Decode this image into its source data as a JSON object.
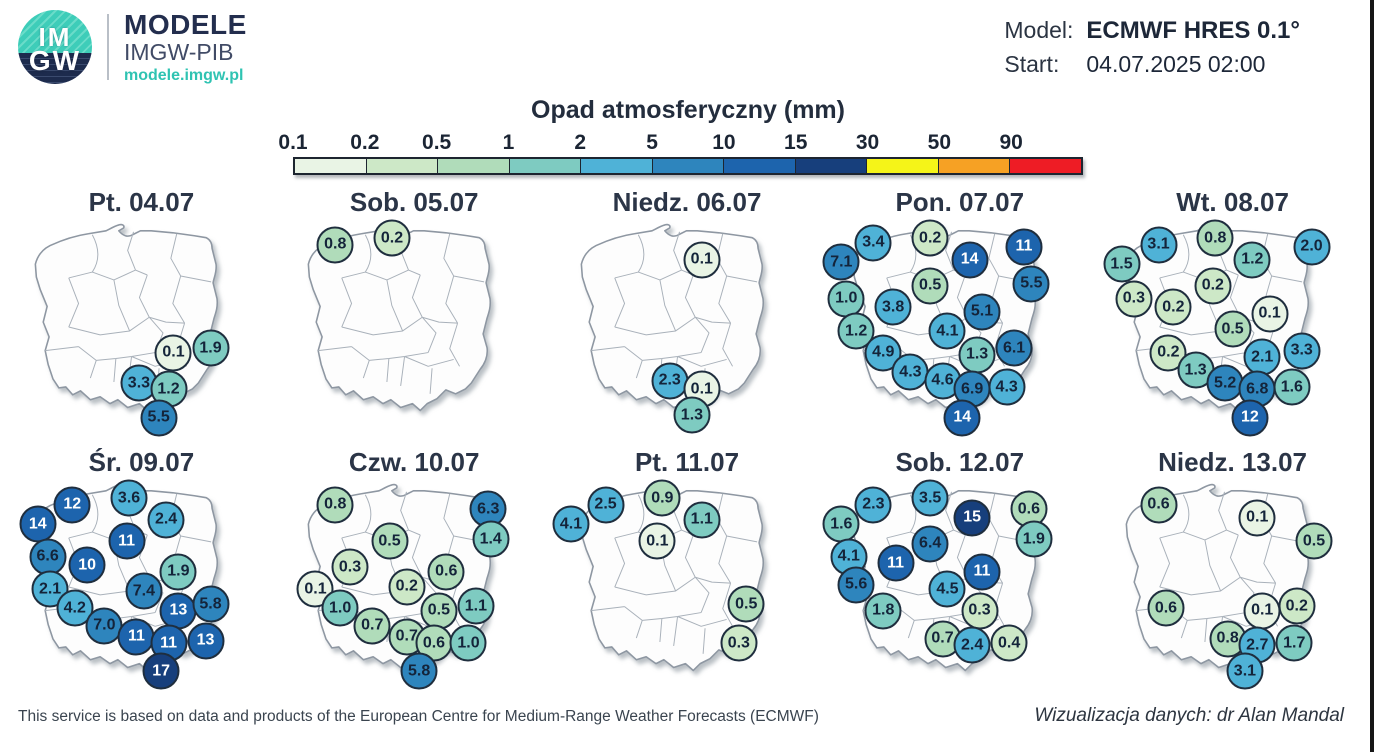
{
  "header": {
    "logo_im": "IM",
    "logo_gw": "GW",
    "brand_title": "MODELE",
    "brand_subtitle": "IMGW-PIB",
    "brand_url": "modele.imgw.pl",
    "model_label": "Model:",
    "model_value": "ECMWF HRES 0.1°",
    "start_label": "Start:",
    "start_value": "04.07.2025 02:00"
  },
  "legend": {
    "title": "Opad atmosferyczny (mm)",
    "ticks": [
      "0.1",
      "0.2",
      "0.5",
      "1",
      "2",
      "5",
      "10",
      "15",
      "30",
      "50",
      "90"
    ],
    "thresholds": [
      0.1,
      0.2,
      0.5,
      1,
      2,
      5,
      10,
      15,
      30,
      50,
      90
    ],
    "colors": [
      "#e9f4e5",
      "#cde8c7",
      "#b0dcba",
      "#7ecbc1",
      "#4fb2d7",
      "#2e85bd",
      "#1d64ad",
      "#173f7c",
      "#f5f418",
      "#f6a124",
      "#ee1c25"
    ],
    "white_text_from": 10
  },
  "maps": [
    {
      "title": "Pt. 04.07",
      "points": [
        {
          "v": "0.1",
          "x": 63,
          "y": 61
        },
        {
          "v": "1.9",
          "x": 78,
          "y": 59
        },
        {
          "v": "3.3",
          "x": 49,
          "y": 75
        },
        {
          "v": "1.2",
          "x": 61,
          "y": 78
        },
        {
          "v": "5.5",
          "x": 57,
          "y": 91
        }
      ]
    },
    {
      "title": "Sob. 05.07",
      "points": [
        {
          "v": "0.8",
          "x": 18,
          "y": 11
        },
        {
          "v": "0.2",
          "x": 41,
          "y": 8
        }
      ]
    },
    {
      "title": "Niedz. 06.07",
      "points": [
        {
          "v": "0.1",
          "x": 56,
          "y": 18
        },
        {
          "v": "2.3",
          "x": 43,
          "y": 74
        },
        {
          "v": "0.1",
          "x": 56,
          "y": 78
        },
        {
          "v": "1.3",
          "x": 52,
          "y": 90
        }
      ]
    },
    {
      "title": "Pon. 07.07",
      "points": [
        {
          "v": "3.4",
          "x": 15,
          "y": 10
        },
        {
          "v": "0.2",
          "x": 38,
          "y": 8
        },
        {
          "v": "14",
          "x": 54,
          "y": 18
        },
        {
          "v": "11",
          "x": 76,
          "y": 12
        },
        {
          "v": "7.1",
          "x": 2,
          "y": 19
        },
        {
          "v": "5.5",
          "x": 79,
          "y": 29
        },
        {
          "v": "0.5",
          "x": 38,
          "y": 30
        },
        {
          "v": "1.0",
          "x": 4,
          "y": 36
        },
        {
          "v": "3.8",
          "x": 23,
          "y": 40
        },
        {
          "v": "5.1",
          "x": 59,
          "y": 42
        },
        {
          "v": "4.1",
          "x": 45,
          "y": 51
        },
        {
          "v": "1.2",
          "x": 8,
          "y": 51
        },
        {
          "v": "6.1",
          "x": 72,
          "y": 59
        },
        {
          "v": "4.9",
          "x": 19,
          "y": 61
        },
        {
          "v": "1.3",
          "x": 57,
          "y": 62
        },
        {
          "v": "4.3",
          "x": 30,
          "y": 70
        },
        {
          "v": "4.6",
          "x": 43,
          "y": 74
        },
        {
          "v": "6.9",
          "x": 55,
          "y": 78
        },
        {
          "v": "4.3",
          "x": 69,
          "y": 77
        },
        {
          "v": "14",
          "x": 51,
          "y": 91
        }
      ]
    },
    {
      "title": "Wt. 08.07",
      "points": [
        {
          "v": "3.1",
          "x": 20,
          "y": 11
        },
        {
          "v": "0.8",
          "x": 43,
          "y": 8
        },
        {
          "v": "1.2",
          "x": 58,
          "y": 18
        },
        {
          "v": "2.0",
          "x": 82,
          "y": 12
        },
        {
          "v": "1.5",
          "x": 5,
          "y": 20
        },
        {
          "v": "0.2",
          "x": 42,
          "y": 30
        },
        {
          "v": "0.3",
          "x": 10,
          "y": 36
        },
        {
          "v": "0.2",
          "x": 26,
          "y": 40
        },
        {
          "v": "0.1",
          "x": 65,
          "y": 43
        },
        {
          "v": "0.5",
          "x": 50,
          "y": 50
        },
        {
          "v": "2.1",
          "x": 62,
          "y": 63
        },
        {
          "v": "3.3",
          "x": 78,
          "y": 60
        },
        {
          "v": "0.2",
          "x": 24,
          "y": 61
        },
        {
          "v": "1.3",
          "x": 35,
          "y": 69
        },
        {
          "v": "5.2",
          "x": 47,
          "y": 75
        },
        {
          "v": "6.8",
          "x": 60,
          "y": 78
        },
        {
          "v": "1.6",
          "x": 74,
          "y": 77
        },
        {
          "v": "12",
          "x": 57,
          "y": 91
        }
      ]
    },
    {
      "title": "Śr. 09.07",
      "points": [
        {
          "v": "12",
          "x": 22,
          "y": 11
        },
        {
          "v": "3.6",
          "x": 45,
          "y": 8
        },
        {
          "v": "14",
          "x": 8,
          "y": 20
        },
        {
          "v": "2.4",
          "x": 60,
          "y": 18
        },
        {
          "v": "11",
          "x": 44,
          "y": 28
        },
        {
          "v": "6.6",
          "x": 12,
          "y": 35
        },
        {
          "v": "10",
          "x": 28,
          "y": 39
        },
        {
          "v": "1.9",
          "x": 65,
          "y": 42
        },
        {
          "v": "2.1",
          "x": 13,
          "y": 50
        },
        {
          "v": "7.4",
          "x": 51,
          "y": 51
        },
        {
          "v": "4.2",
          "x": 23,
          "y": 59
        },
        {
          "v": "13",
          "x": 65,
          "y": 60
        },
        {
          "v": "5.8",
          "x": 78,
          "y": 57
        },
        {
          "v": "7.0",
          "x": 35,
          "y": 67
        },
        {
          "v": "11",
          "x": 48,
          "y": 72
        },
        {
          "v": "11",
          "x": 61,
          "y": 75
        },
        {
          "v": "13",
          "x": 76,
          "y": 74
        },
        {
          "v": "17",
          "x": 58,
          "y": 88
        }
      ]
    },
    {
      "title": "Czw. 10.07",
      "points": [
        {
          "v": "0.8",
          "x": 18,
          "y": 11
        },
        {
          "v": "6.3",
          "x": 80,
          "y": 13
        },
        {
          "v": "0.5",
          "x": 40,
          "y": 28
        },
        {
          "v": "1.4",
          "x": 81,
          "y": 27
        },
        {
          "v": "0.3",
          "x": 24,
          "y": 40
        },
        {
          "v": "0.6",
          "x": 63,
          "y": 42
        },
        {
          "v": "0.1",
          "x": 10,
          "y": 50
        },
        {
          "v": "0.2",
          "x": 47,
          "y": 49
        },
        {
          "v": "1.0",
          "x": 20,
          "y": 59
        },
        {
          "v": "0.5",
          "x": 60,
          "y": 60
        },
        {
          "v": "1.1",
          "x": 75,
          "y": 58
        },
        {
          "v": "0.7",
          "x": 33,
          "y": 67
        },
        {
          "v": "0.7",
          "x": 47,
          "y": 72
        },
        {
          "v": "0.6",
          "x": 58,
          "y": 75
        },
        {
          "v": "1.0",
          "x": 72,
          "y": 75
        },
        {
          "v": "5.8",
          "x": 52,
          "y": 88
        }
      ]
    },
    {
      "title": "Pt. 11.07",
      "points": [
        {
          "v": "0.9",
          "x": 40,
          "y": 8
        },
        {
          "v": "2.5",
          "x": 17,
          "y": 11
        },
        {
          "v": "4.1",
          "x": 3,
          "y": 20
        },
        {
          "v": "1.1",
          "x": 56,
          "y": 18
        },
        {
          "v": "0.1",
          "x": 38,
          "y": 28
        },
        {
          "v": "0.5",
          "x": 74,
          "y": 57
        },
        {
          "v": "0.3",
          "x": 71,
          "y": 75
        }
      ]
    },
    {
      "title": "Sob. 12.07",
      "points": [
        {
          "v": "2.3",
          "x": 15,
          "y": 11
        },
        {
          "v": "3.5",
          "x": 38,
          "y": 8
        },
        {
          "v": "15",
          "x": 55,
          "y": 17
        },
        {
          "v": "0.6",
          "x": 78,
          "y": 13
        },
        {
          "v": "1.6",
          "x": 2,
          "y": 20
        },
        {
          "v": "6.4",
          "x": 38,
          "y": 29
        },
        {
          "v": "1.9",
          "x": 80,
          "y": 27
        },
        {
          "v": "4.1",
          "x": 5,
          "y": 35
        },
        {
          "v": "11",
          "x": 24,
          "y": 38
        },
        {
          "v": "11",
          "x": 59,
          "y": 42
        },
        {
          "v": "5.6",
          "x": 8,
          "y": 48
        },
        {
          "v": "4.5",
          "x": 45,
          "y": 50
        },
        {
          "v": "1.8",
          "x": 19,
          "y": 60
        },
        {
          "v": "0.3",
          "x": 58,
          "y": 60
        },
        {
          "v": "0.7",
          "x": 43,
          "y": 73
        },
        {
          "v": "2.4",
          "x": 55,
          "y": 76
        },
        {
          "v": "0.4",
          "x": 70,
          "y": 75
        }
      ]
    },
    {
      "title": "Niedz. 13.07",
      "points": [
        {
          "v": "0.6",
          "x": 20,
          "y": 11
        },
        {
          "v": "0.1",
          "x": 60,
          "y": 17
        },
        {
          "v": "0.5",
          "x": 83,
          "y": 28
        },
        {
          "v": "0.6",
          "x": 23,
          "y": 59
        },
        {
          "v": "0.1",
          "x": 62,
          "y": 60
        },
        {
          "v": "0.2",
          "x": 76,
          "y": 58
        },
        {
          "v": "0.8",
          "x": 48,
          "y": 73
        },
        {
          "v": "2.7",
          "x": 60,
          "y": 76
        },
        {
          "v": "1.7",
          "x": 75,
          "y": 75
        },
        {
          "v": "3.1",
          "x": 55,
          "y": 88
        }
      ]
    }
  ],
  "footer": {
    "left": "This service is based on data and products of the European Centre for Medium-Range Weather Forecasts (ECMWF)",
    "right": "Wizualizacja danych: dr Alan Mandal"
  }
}
